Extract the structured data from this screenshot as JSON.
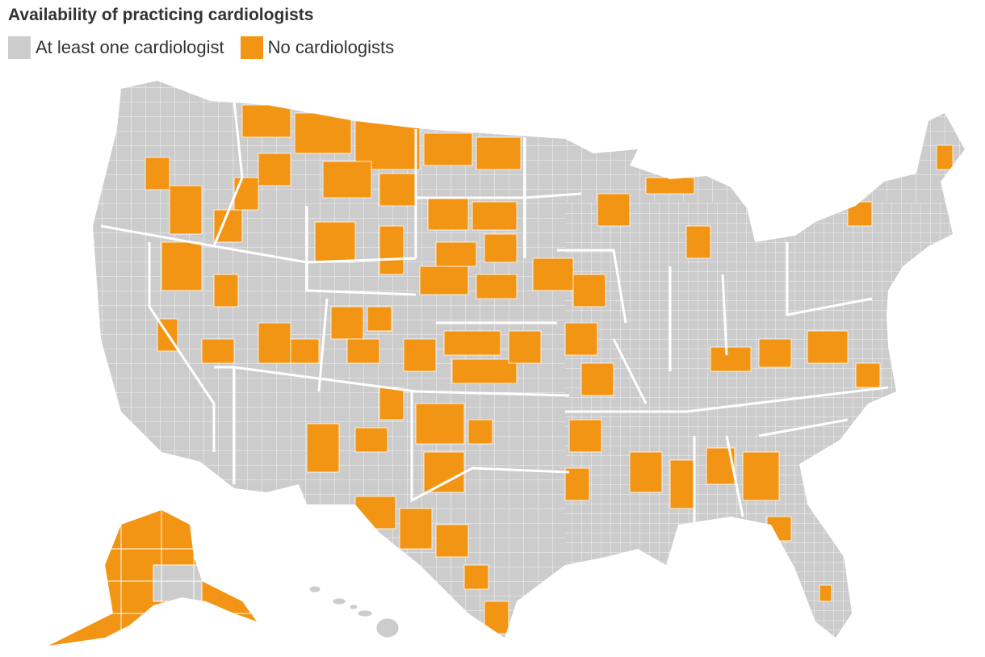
{
  "title": "Availability of practicing cardiologists",
  "legend": [
    {
      "label": "At least one cardiologist",
      "color": "#cccccc"
    },
    {
      "label": "No cardiologists",
      "color": "#f39514"
    }
  ],
  "map": {
    "region": "United States counties",
    "base_color": "#cccccc",
    "highlight_color": "#f39514",
    "border_color": "#ffffff"
  }
}
